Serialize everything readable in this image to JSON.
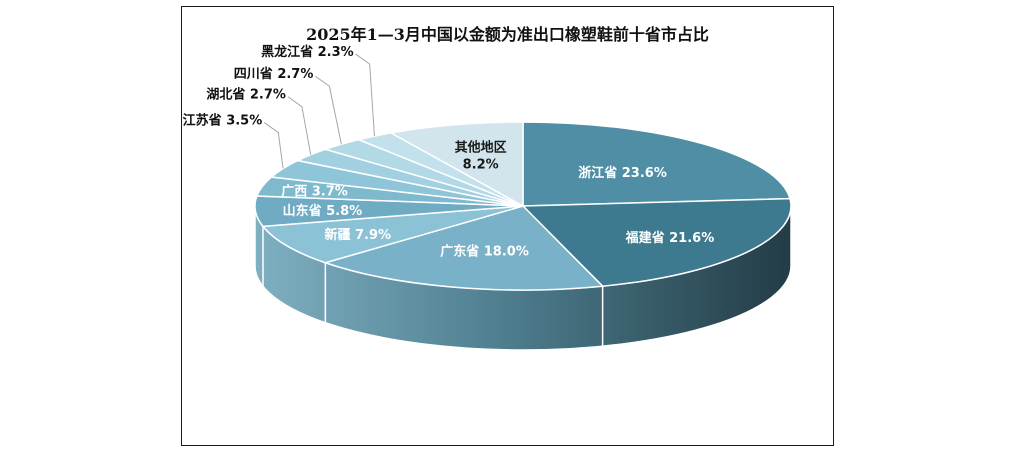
{
  "chart_data": {
    "type": "pie",
    "title": "2025年1—3月中国以金额为准出口橡塑鞋前十省市占比",
    "series": [
      {
        "name": "浙江省",
        "label": "浙江省 23.6%",
        "value": 23.6,
        "color": "#4f8ea5"
      },
      {
        "name": "福建省",
        "label": "福建省 21.6%",
        "value": 21.6,
        "color": "#3d7a8f"
      },
      {
        "name": "广东省",
        "label": "广东省 18.0%",
        "value": 18.0,
        "color": "#79b2c8"
      },
      {
        "name": "新疆",
        "label": "新疆 7.9%",
        "value": 7.9,
        "color": "#8cc2d6"
      },
      {
        "name": "山东省",
        "label": "山东省 5.8%",
        "value": 5.8,
        "color": "#6fabc2"
      },
      {
        "name": "广西",
        "label": "广西 3.7%",
        "value": 3.7,
        "color": "#7eb9cd"
      },
      {
        "name": "江苏省",
        "label": "江苏省 3.5%",
        "value": 3.5,
        "color": "#8fc5d8"
      },
      {
        "name": "湖北省",
        "label": "湖北省 2.7%",
        "value": 2.7,
        "color": "#a2d0e0"
      },
      {
        "name": "四川省",
        "label": "四川省 2.7%",
        "value": 2.7,
        "color": "#b2d9e6"
      },
      {
        "name": "黑龙江省",
        "label": "黑龙江省 2.3%",
        "value": 2.3,
        "color": "#c2e1ec"
      },
      {
        "name": "其他地区",
        "label": "其他地区",
        "value_label": "8.2%",
        "value": 8.2,
        "color": "#d2e5ed"
      }
    ]
  }
}
